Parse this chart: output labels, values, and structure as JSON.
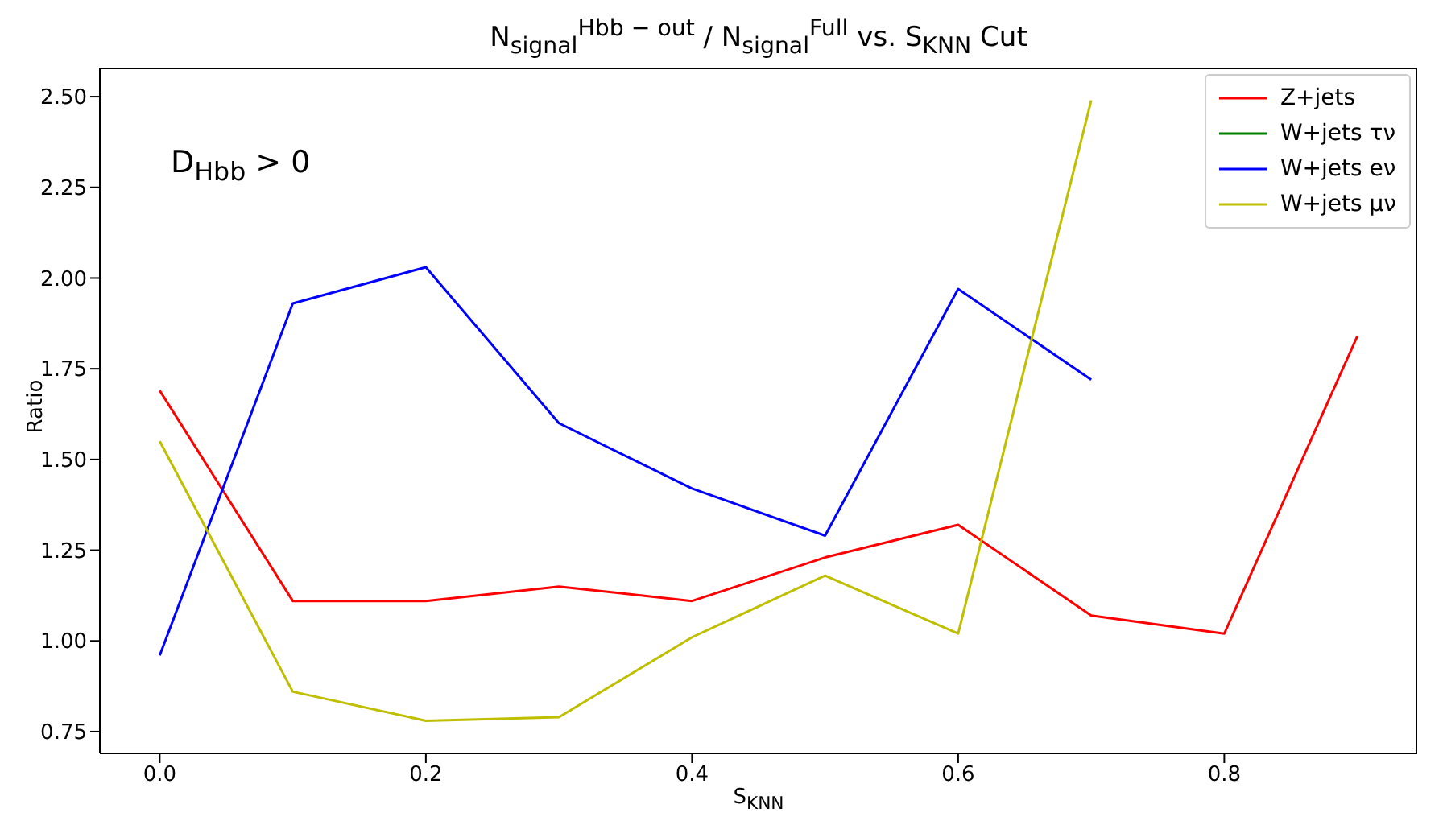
{
  "chart_data": {
    "type": "line",
    "title": "N$_{signal}$$^{Hbb − out}$ / N$_{signal}$$^{Full}$  vs.  S$_{KNN}$ Cut",
    "xlabel": "S$_{KNN}$",
    "ylabel": "Ratio",
    "annotations": [
      "D$_{Hbb}$ > 0"
    ],
    "x": [
      0,
      0.1,
      0.2,
      0.3,
      0.4,
      0.5,
      0.6,
      0.7,
      0.8,
      0.9
    ],
    "series": [
      {
        "name": "Z+jets",
        "color": "#ff0000",
        "values": [
          1.69,
          1.11,
          1.11,
          1.15,
          1.11,
          1.23,
          1.32,
          1.07,
          1.02,
          1.84
        ]
      },
      {
        "name": "W+jets τν",
        "color": "#008000",
        "values": [
          null,
          null,
          null,
          null,
          null,
          null,
          null,
          null,
          null,
          null
        ]
      },
      {
        "name": "W+jets eν",
        "color": "#0000ff",
        "values": [
          0.96,
          1.93,
          2.03,
          1.6,
          1.42,
          1.29,
          1.97,
          1.72,
          null,
          null
        ]
      },
      {
        "name": "W+jets μν",
        "color": "#bfbf00",
        "values": [
          1.55,
          0.86,
          0.78,
          0.79,
          1.01,
          1.18,
          1.02,
          2.49,
          null,
          null
        ]
      }
    ],
    "xlim": [
      -0.045,
      0.945
    ],
    "xticks": [
      {
        "value": 0,
        "label": "0.0"
      },
      {
        "value": 0.2,
        "label": "0.2"
      },
      {
        "value": 0.4,
        "label": "0.4"
      },
      {
        "value": 0.6,
        "label": "0.6"
      },
      {
        "value": 0.8,
        "label": "0.8"
      }
    ],
    "ylim": [
      0.69,
      2.58
    ],
    "yticks": [
      {
        "value": 0.75,
        "label": "0.75"
      },
      {
        "value": 1,
        "label": "1.00"
      },
      {
        "value": 1.25,
        "label": "1.25"
      },
      {
        "value": 1.5,
        "label": "1.50"
      },
      {
        "value": 1.75,
        "label": "1.75"
      },
      {
        "value": 2,
        "label": "2.00"
      },
      {
        "value": 2.25,
        "label": "2.25"
      },
      {
        "value": 2.5,
        "label": "2.50"
      }
    ],
    "grid": false,
    "legend": "top right",
    "marker": "none",
    "line_style": "solid"
  }
}
